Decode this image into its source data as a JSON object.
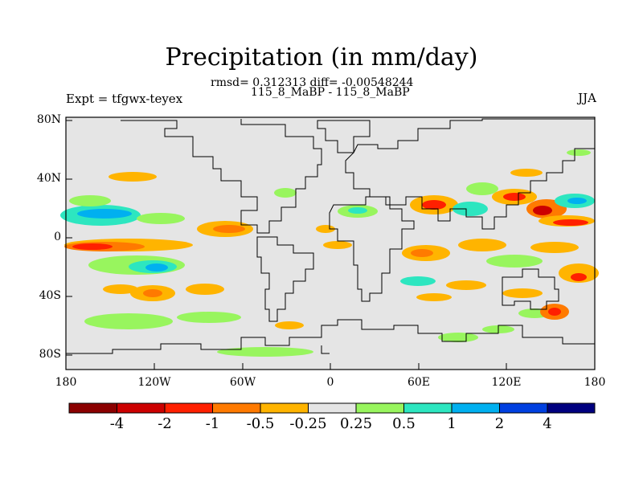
{
  "title": "Precipitation (in mm/day)",
  "stats_line": "rmsd= 0.312313 diff= -0.00548244",
  "cases_line": "115_8_MaBP - 115_8_MaBP",
  "expt_label": "Expt = tfgwx-teyex",
  "season": "JJA",
  "lat_ticks": [
    "80N",
    "40N",
    "0",
    "40S",
    "80S"
  ],
  "lon_ticks": [
    "180",
    "120W",
    "60W",
    "0",
    "60E",
    "120E",
    "180"
  ],
  "colorbar": {
    "labels": [
      "-4",
      "-2",
      "-1",
      "-0.5",
      "-0.25",
      "0.25",
      "0.5",
      "1",
      "2",
      "4"
    ],
    "colors": [
      "#8b0000",
      "#cc0000",
      "#ff2000",
      "#ff7a00",
      "#ffb400",
      "#e5e5e5",
      "#98f55e",
      "#2de6c0",
      "#00b0f0",
      "#0040e0",
      "#00007f"
    ]
  },
  "colors": {
    "background_field": "#e5e5e5",
    "coastline": "#000000"
  }
}
